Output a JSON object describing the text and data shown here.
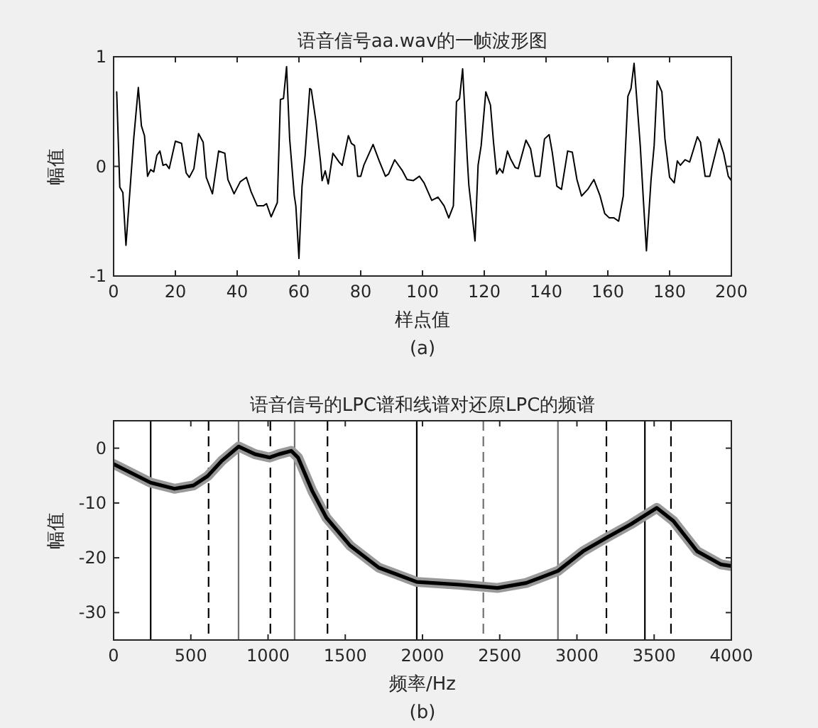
{
  "chart_data": [
    {
      "type": "line",
      "title": "语音信号aa.wav的一帧波形图",
      "xlabel": "样点值",
      "ylabel": "幅值",
      "annotations": [
        "(a)"
      ],
      "xlim": [
        0,
        200
      ],
      "ylim": [
        -1,
        1
      ],
      "xticks": [
        0,
        20,
        40,
        60,
        80,
        100,
        120,
        140,
        160,
        180,
        200
      ],
      "yticks": [
        -1,
        0,
        1
      ],
      "series": [
        {
          "color": "#000000",
          "x": [
            1,
            2,
            3,
            4,
            6.5,
            8,
            9,
            10,
            11,
            12,
            13,
            14,
            15,
            16,
            17,
            18,
            20,
            22,
            23.5,
            24.5,
            26,
            27.5,
            29,
            30,
            32,
            34,
            36,
            37,
            39,
            41,
            43,
            44.5,
            46.5,
            48.5,
            49.5,
            51,
            53,
            54,
            55,
            56,
            57,
            58.5,
            59,
            60,
            61,
            62,
            63.5,
            64,
            65.5,
            67,
            67.5,
            68.5,
            69.5,
            71,
            72,
            73,
            74,
            76,
            77,
            78,
            79,
            80,
            81,
            84,
            86,
            88,
            89,
            91,
            93.5,
            95,
            97,
            99,
            100.5,
            103,
            105,
            107,
            108.5,
            110,
            111,
            112,
            113,
            114.5,
            115,
            117,
            118,
            119,
            120.5,
            122,
            123,
            124,
            125,
            126,
            127.5,
            128.5,
            130,
            131,
            133.5,
            135,
            136.5,
            138,
            139.5,
            141,
            142,
            143.5,
            145,
            147,
            148.5,
            150,
            151.5,
            153.5,
            155.5,
            157.5,
            159,
            160.5,
            162,
            163.5,
            165,
            166.5,
            167.5,
            168.5,
            170.5,
            171.5,
            172.5,
            174,
            175,
            176,
            177.5,
            178.5,
            180,
            181.5,
            182.5,
            183.5,
            185,
            186.5,
            189,
            190,
            191.5,
            193,
            196,
            197.5,
            199,
            200
          ],
          "values": [
            0.68,
            -0.19,
            -0.24,
            -0.72,
            0.25,
            0.72,
            0.37,
            0.28,
            -0.09,
            -0.03,
            -0.05,
            0.1,
            0.14,
            0.01,
            0.02,
            -0.02,
            0.23,
            0.21,
            -0.06,
            -0.1,
            -0.02,
            0.3,
            0.22,
            -0.1,
            -0.25,
            0.14,
            0.12,
            -0.12,
            -0.25,
            -0.14,
            -0.1,
            -0.23,
            -0.36,
            -0.36,
            -0.34,
            -0.46,
            -0.33,
            0.61,
            0.62,
            0.91,
            0.25,
            -0.27,
            -0.36,
            -0.84,
            -0.18,
            0.1,
            0.71,
            0.7,
            0.41,
            0.04,
            -0.13,
            -0.04,
            -0.16,
            0.12,
            0.08,
            0.04,
            0.01,
            0.28,
            0.21,
            0.19,
            -0.09,
            -0.09,
            0.01,
            0.2,
            0.05,
            -0.09,
            -0.07,
            0.06,
            -0.04,
            -0.12,
            -0.13,
            -0.09,
            -0.15,
            -0.31,
            -0.28,
            -0.36,
            -0.47,
            -0.36,
            0.59,
            0.62,
            0.89,
            0.07,
            -0.17,
            -0.68,
            0.01,
            0.19,
            0.68,
            0.56,
            0.22,
            -0.07,
            -0.02,
            -0.06,
            0.14,
            0.07,
            -0.01,
            -0.02,
            0.24,
            0.16,
            -0.09,
            -0.09,
            0.25,
            0.29,
            0.13,
            -0.18,
            -0.21,
            0.14,
            0.13,
            -0.12,
            -0.27,
            -0.21,
            -0.12,
            -0.27,
            -0.43,
            -0.47,
            -0.47,
            -0.5,
            -0.27,
            0.64,
            0.71,
            0.94,
            0.19,
            -0.3,
            -0.77,
            -0.12,
            0.19,
            0.78,
            0.68,
            0.25,
            -0.1,
            -0.15,
            0.05,
            0.01,
            0.06,
            0.04,
            0.27,
            0.22,
            -0.09,
            -0.09,
            0.25,
            0.12,
            -0.09,
            -0.13
          ]
        }
      ]
    },
    {
      "type": "line",
      "title": "语音信号的LPC谱和线谱对还原LPC的频谱",
      "xlabel": "频率/Hz",
      "ylabel": "幅值",
      "annotations": [
        "(b)"
      ],
      "xlim": [
        0,
        4000
      ],
      "ylim": [
        -35,
        5
      ],
      "xticks": [
        0,
        500,
        1000,
        1500,
        2000,
        2500,
        3000,
        3500,
        4000
      ],
      "yticks": [
        -30,
        -20,
        -10,
        0
      ],
      "ref_lines": [
        {
          "axis": "x",
          "value": 240,
          "color": "#000000",
          "line_style": "solid"
        },
        {
          "axis": "x",
          "value": 809,
          "color": "#707070",
          "line_style": "solid"
        },
        {
          "axis": "x",
          "value": 1172,
          "color": "#707070",
          "line_style": "solid"
        },
        {
          "axis": "x",
          "value": 1963,
          "color": "#000000",
          "line_style": "solid"
        },
        {
          "axis": "x",
          "value": 2877,
          "color": "#707070",
          "line_style": "solid"
        },
        {
          "axis": "x",
          "value": 3440,
          "color": "#000000",
          "line_style": "solid"
        },
        {
          "axis": "x",
          "value": 615,
          "color": "#000000",
          "line_style": "dashed"
        },
        {
          "axis": "x",
          "value": 1015,
          "color": "#000000",
          "line_style": "dashed"
        },
        {
          "axis": "x",
          "value": 1385,
          "color": "#000000",
          "line_style": "dashed"
        },
        {
          "axis": "x",
          "value": 2394,
          "color": "#707070",
          "line_style": "dashed"
        },
        {
          "axis": "x",
          "value": 3191,
          "color": "#000000",
          "line_style": "dashed"
        },
        {
          "axis": "x",
          "value": 3609,
          "color": "#000000",
          "line_style": "dashed"
        }
      ],
      "x": [
        0,
        240,
        394,
        517,
        609,
        700,
        810,
        916,
        1010,
        1070,
        1150,
        1194,
        1286,
        1378,
        1532,
        1717,
        1963,
        2240,
        2486,
        2671,
        2877,
        3040,
        3194,
        3348,
        3517,
        3625,
        3778,
        3932,
        4000
      ],
      "series": [
        {
          "color": "#999999",
          "values": [
            -2.9,
            -6.3,
            -7.4,
            -6.8,
            -5.1,
            -2.3,
            0.3,
            -1.1,
            -1.7,
            -1.1,
            -0.5,
            -1.7,
            -7.8,
            -12.7,
            -17.8,
            -21.8,
            -24.4,
            -24.9,
            -25.5,
            -24.6,
            -22.4,
            -18.8,
            -16.3,
            -13.9,
            -10.9,
            -13.3,
            -18.8,
            -21.2,
            -21.5
          ]
        },
        {
          "color": "#000000",
          "values": [
            -2.9,
            -6.3,
            -7.4,
            -6.8,
            -5.1,
            -2.3,
            0.3,
            -1.1,
            -1.7,
            -1.1,
            -0.5,
            -1.7,
            -7.8,
            -12.7,
            -17.8,
            -21.8,
            -24.4,
            -24.9,
            -25.5,
            -24.6,
            -22.4,
            -18.8,
            -16.3,
            -13.9,
            -10.9,
            -13.3,
            -18.8,
            -21.2,
            -21.5
          ]
        }
      ]
    }
  ]
}
